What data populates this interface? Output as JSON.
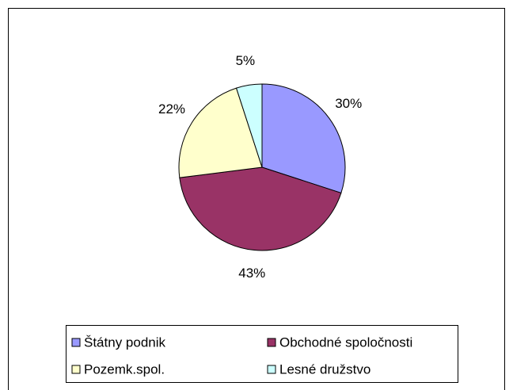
{
  "chart_data": {
    "type": "pie",
    "categories": [
      "Štátny podnik",
      "Obchodné spoločnosti",
      "Pozemk.spol.",
      "Lesné družstvo"
    ],
    "values": [
      30,
      43,
      22,
      5
    ],
    "value_labels": [
      "30%",
      "43%",
      "22%",
      "5%"
    ],
    "colors": [
      "#9999ff",
      "#993366",
      "#ffffcc",
      "#ccffff"
    ],
    "legend": "bottom"
  }
}
